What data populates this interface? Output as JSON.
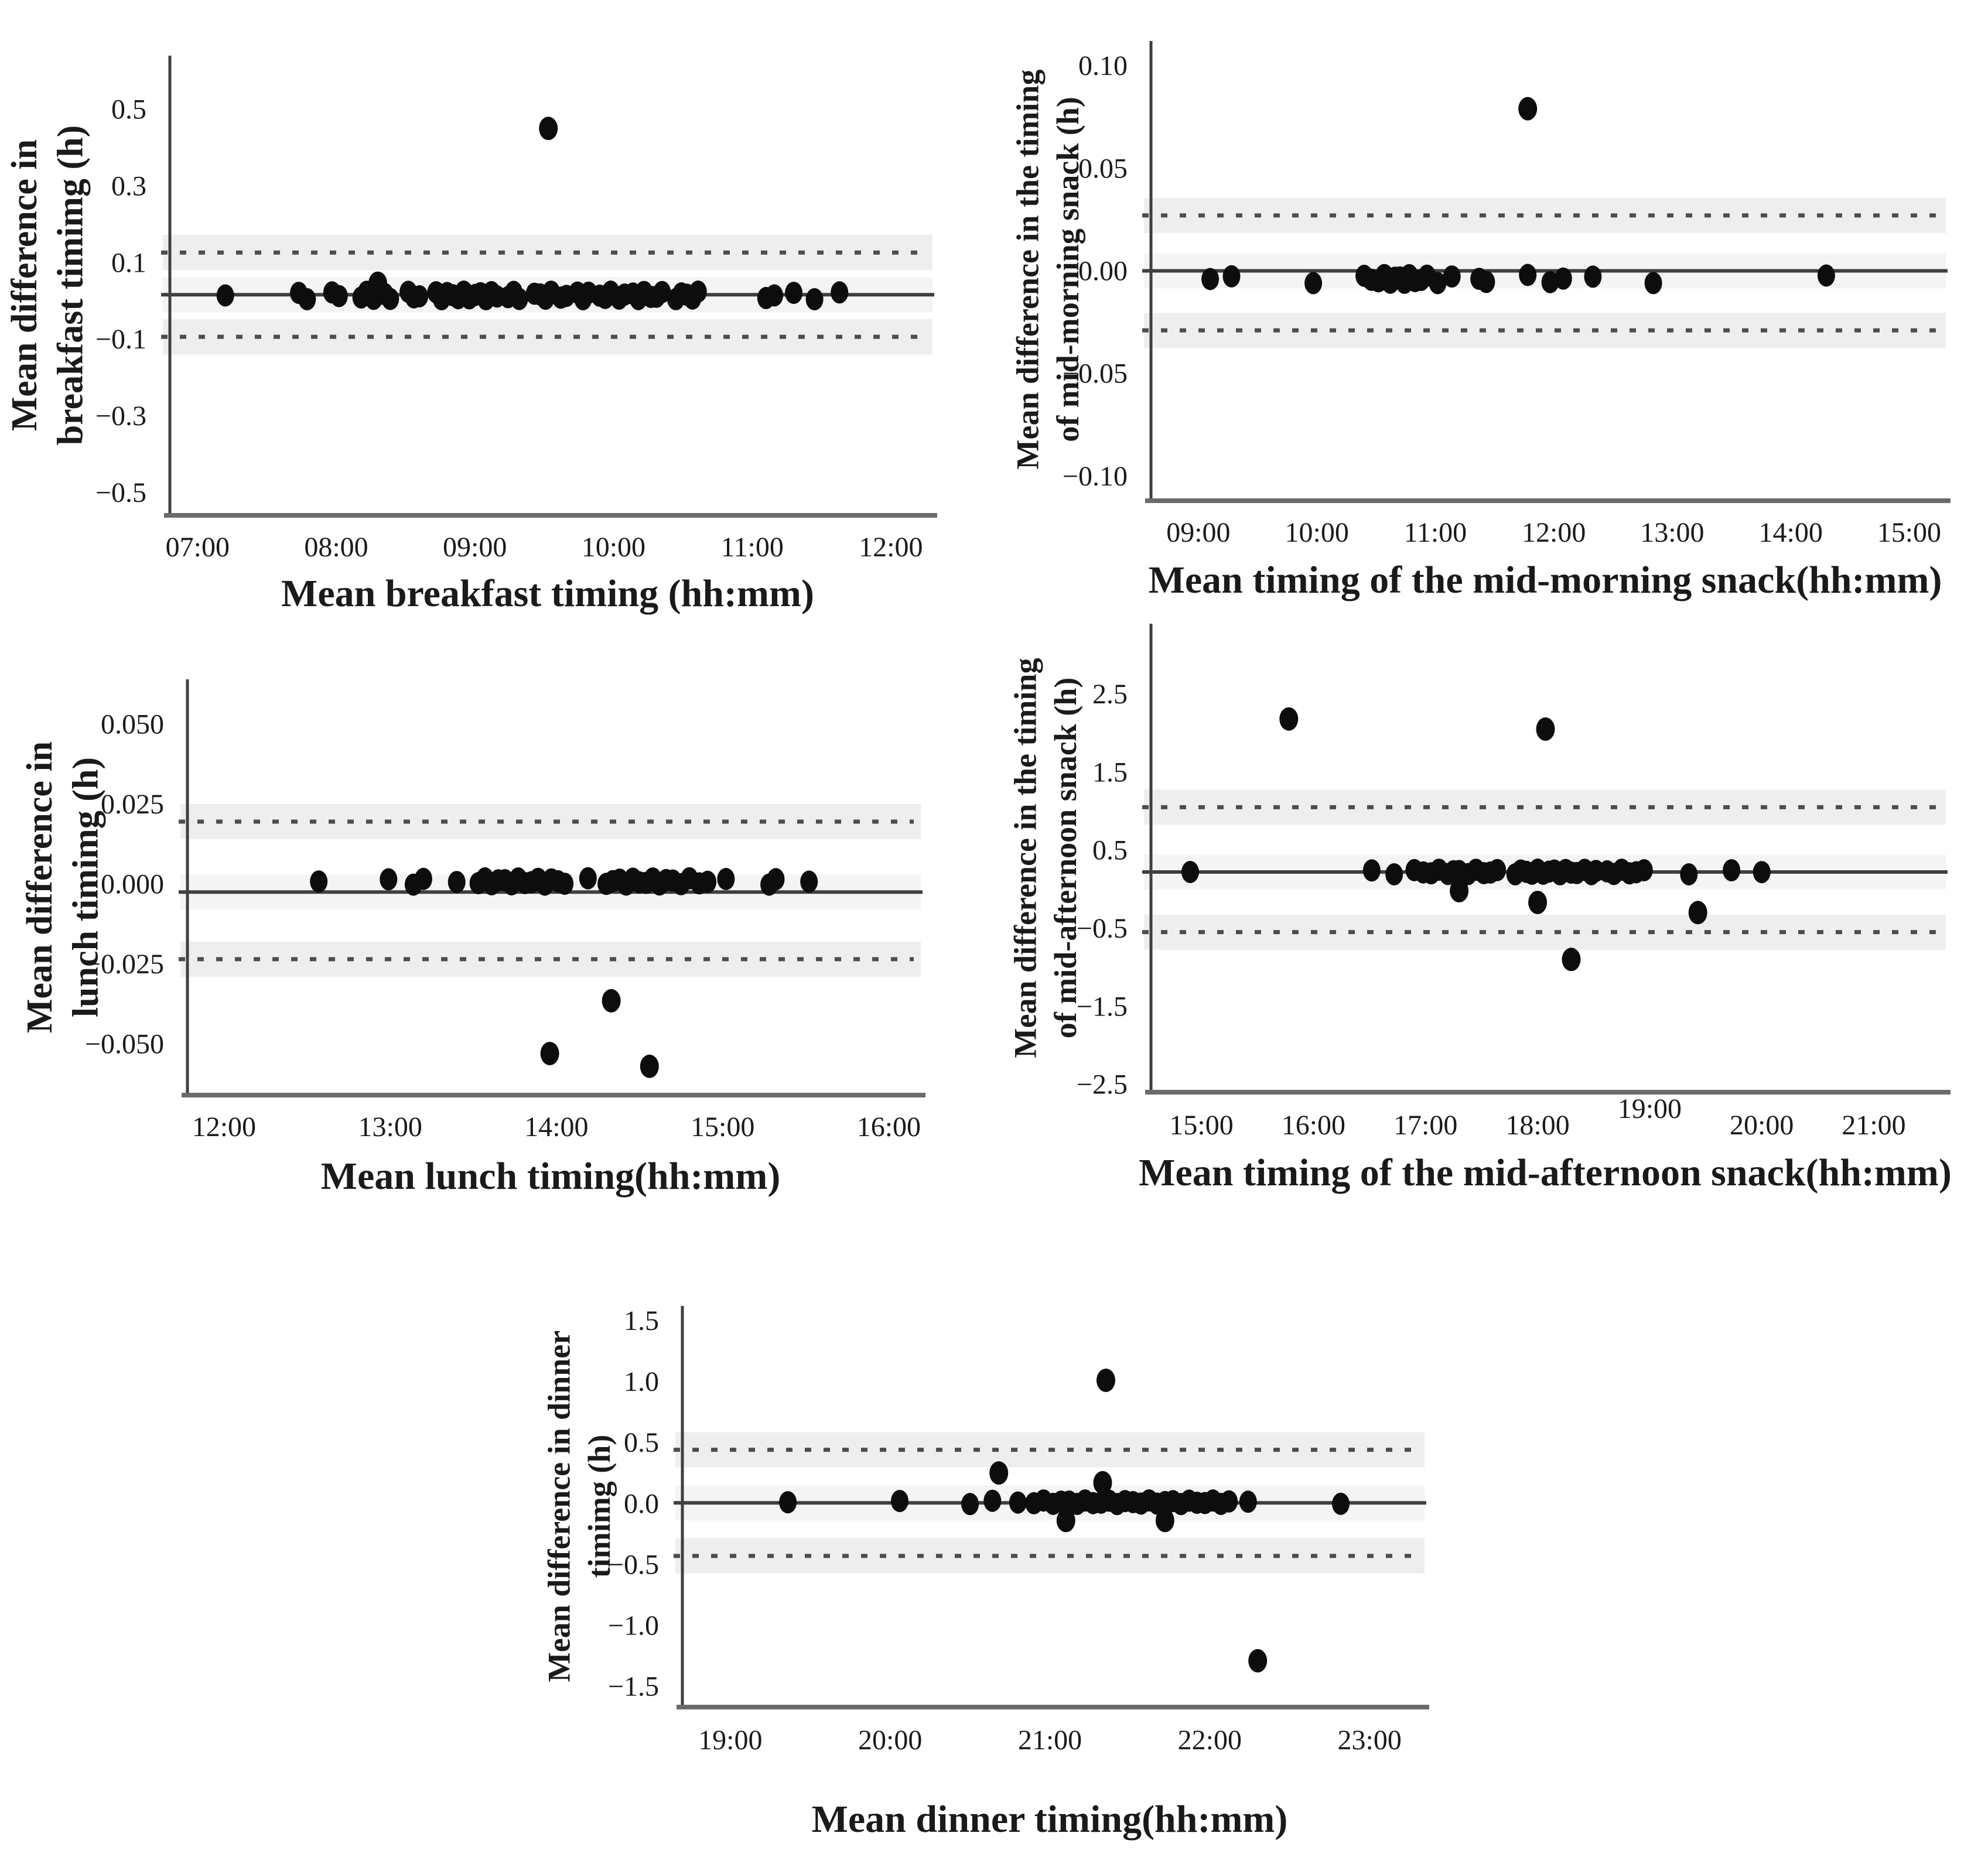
{
  "figure": {
    "background": "#ffffff",
    "colors": {
      "dot": "#0d0d0d",
      "mean_line": "#3f3f3f",
      "loa_line": "#4d4d4d",
      "axis_left": "#3f3f3f",
      "axis_bottom": "#6b6b6b",
      "band": "#000000",
      "text": "#1a1a1a"
    },
    "marker": {
      "rx": 15,
      "ry": 19
    },
    "mean_line_width": 6,
    "loa_line_width": 7,
    "loa_dash": "11 21",
    "tick_font_size": 48
  },
  "chart_data": [
    {
      "id": "breakfast",
      "type": "scatter",
      "ylabel_lines": [
        "Mean difference in",
        "breakfast timimg (h)"
      ],
      "xlabel": "Mean breakfast timing (hh:mm)",
      "xlim": [
        6.8,
        12.25
      ],
      "ylim": [
        -0.56,
        0.64
      ],
      "xticks": [
        {
          "v": 7,
          "label": "07:00"
        },
        {
          "v": 8,
          "label": "08:00"
        },
        {
          "v": 9,
          "label": "09:00"
        },
        {
          "v": 10,
          "label": "10:00"
        },
        {
          "v": 11,
          "label": "11:00"
        },
        {
          "v": 12,
          "label": "12:00"
        }
      ],
      "yticks": [
        {
          "v": 0.5,
          "label": "0.5"
        },
        {
          "v": 0.3,
          "label": "0.3"
        },
        {
          "v": 0.1,
          "label": "0.1"
        },
        {
          "v": -0.1,
          "label": "−0.1"
        },
        {
          "v": -0.3,
          "label": "−0.3"
        },
        {
          "v": -0.5,
          "label": "−0.5"
        }
      ],
      "mean_line": 0.016,
      "loa_upper": 0.126,
      "loa_lower": -0.094,
      "grid": false,
      "legend": null,
      "on_line_points": {
        "v": 0.014,
        "spread": 0.01,
        "t": [
          7.2,
          7.73,
          7.79,
          7.97,
          8.02,
          8.18,
          8.22,
          8.27,
          8.31,
          8.35,
          8.39,
          8.52,
          8.56,
          8.6,
          8.72,
          8.76,
          8.8,
          8.84,
          8.88,
          8.92,
          8.96,
          9.0,
          9.04,
          9.08,
          9.12,
          9.16,
          9.24,
          9.28,
          9.32,
          9.43,
          9.47,
          9.51,
          9.55,
          9.62,
          9.66,
          9.74,
          9.78,
          9.82,
          9.9,
          9.94,
          9.98,
          10.04,
          10.08,
          10.14,
          10.18,
          10.22,
          10.27,
          10.31,
          10.35,
          10.45,
          10.49,
          10.53,
          10.57,
          10.61,
          11.1,
          11.16,
          11.3,
          11.45,
          11.63
        ]
      },
      "scattered_points": [
        [
          9.53,
          0.45
        ],
        [
          8.3,
          0.046
        ]
      ]
    },
    {
      "id": "mid-morning-snack",
      "type": "scatter",
      "ylabel_lines": [
        "Mean difference in the timing",
        "of mid-morning snack (h)"
      ],
      "xlabel": "Mean timing of the mid-morning snack(hh:mm)",
      "xlim": [
        8.6,
        15.25
      ],
      "ylim": [
        -0.112,
        0.112
      ],
      "xticks": [
        {
          "v": 9,
          "label": "09:00"
        },
        {
          "v": 10,
          "label": "10:00"
        },
        {
          "v": 11,
          "label": "11:00"
        },
        {
          "v": 12,
          "label": "12:00"
        },
        {
          "v": 13,
          "label": "13:00"
        },
        {
          "v": 14,
          "label": "14:00"
        },
        {
          "v": 15,
          "label": "15:00"
        }
      ],
      "yticks": [
        {
          "v": 0.1,
          "label": "0.10"
        },
        {
          "v": 0.05,
          "label": "0.05"
        },
        {
          "v": 0.0,
          "label": "0.00"
        },
        {
          "v": -0.05,
          "label": "−0.05"
        },
        {
          "v": -0.1,
          "label": "−0.10"
        }
      ],
      "mean_line": 0.0,
      "loa_upper": 0.027,
      "loa_lower": -0.029,
      "grid": false,
      "legend": null,
      "on_line_points": {
        "v": -0.004,
        "spread": 0.002,
        "t": [
          9.1,
          9.28,
          9.97,
          10.4,
          10.46,
          10.52,
          10.57,
          10.62,
          10.66,
          10.7,
          10.74,
          10.78,
          10.83,
          10.88,
          10.93,
          11.02,
          11.14,
          11.37,
          11.43,
          11.78,
          11.97,
          12.08,
          12.33,
          12.84,
          14.3
        ]
      },
      "scattered_points": [
        [
          11.78,
          0.079
        ]
      ]
    },
    {
      "id": "lunch",
      "type": "scatter",
      "ylabel_lines": [
        "Mean difference in",
        "lunch timimg (h)"
      ],
      "xlabel": "Mean lunch timing(hh:mm)",
      "xlim": [
        11.78,
        16.15
      ],
      "ylim": [
        -0.066,
        0.064
      ],
      "xticks": [
        {
          "v": 12,
          "label": "12:00"
        },
        {
          "v": 13,
          "label": "13:00"
        },
        {
          "v": 14,
          "label": "14:00"
        },
        {
          "v": 15,
          "label": "15:00"
        },
        {
          "v": 16,
          "label": "16:00"
        }
      ],
      "yticks": [
        {
          "v": 0.05,
          "label": "0.050"
        },
        {
          "v": 0.025,
          "label": "0.025"
        },
        {
          "v": 0.0,
          "label": "0.000"
        },
        {
          "v": -0.025,
          "label": "−0.025"
        },
        {
          "v": -0.05,
          "label": "−0.050"
        }
      ],
      "mean_line": -0.0025,
      "loa_upper": 0.0195,
      "loa_lower": -0.0235,
      "grid": false,
      "legend": null,
      "on_line_points": {
        "v": 0.0008,
        "spread": 0.001,
        "t": [
          12.57,
          12.99,
          13.14,
          13.2,
          13.4,
          13.53,
          13.57,
          13.61,
          13.65,
          13.69,
          13.73,
          13.77,
          13.81,
          13.85,
          13.89,
          13.93,
          13.97,
          14.01,
          14.05,
          14.19,
          14.3,
          14.34,
          14.38,
          14.42,
          14.46,
          14.5,
          14.54,
          14.58,
          14.62,
          14.66,
          14.7,
          14.75,
          14.8,
          14.86,
          14.91,
          15.02,
          15.28,
          15.32,
          15.52
        ]
      },
      "scattered_points": [
        [
          13.96,
          -0.053
        ],
        [
          14.33,
          -0.0365
        ],
        [
          14.56,
          -0.057
        ]
      ]
    },
    {
      "id": "mid-afternoon-snack",
      "type": "scatter",
      "ylabel_lines": [
        "Mean difference in the timing",
        "of mid-afternoon snack (h)"
      ],
      "xlabel": "Mean timing of the mid-afternoon snack(hh:mm)",
      "xlim": [
        14.55,
        21.58
      ],
      "ylim": [
        -2.6,
        3.4
      ],
      "xticks": [
        {
          "v": 15,
          "label": "15:00"
        },
        {
          "v": 16,
          "label": "16:00"
        },
        {
          "v": 17,
          "label": "17:00"
        },
        {
          "v": 18,
          "label": "18:00"
        },
        {
          "v": 19,
          "label": "19:00",
          "dy": -28
        },
        {
          "v": 20,
          "label": "20:00"
        },
        {
          "v": 21,
          "label": "21:00"
        }
      ],
      "yticks": [
        {
          "v": 2.5,
          "label": "2.5"
        },
        {
          "v": 1.5,
          "label": "1.5"
        },
        {
          "v": 0.5,
          "label": "0.5"
        },
        {
          "v": -0.5,
          "label": "−0.5"
        },
        {
          "v": -1.5,
          "label": "−1.5"
        },
        {
          "v": -2.5,
          "label": "−2.5"
        }
      ],
      "mean_line": 0.22,
      "loa_upper": 1.05,
      "loa_lower": -0.55,
      "grid": false,
      "legend": null,
      "on_line_points": {
        "v": 0.22,
        "spread": 0.03,
        "t": [
          14.9,
          16.52,
          16.72,
          16.9,
          16.98,
          17.05,
          17.12,
          17.2,
          17.25,
          17.3,
          17.38,
          17.45,
          17.52,
          17.58,
          17.64,
          17.8,
          17.85,
          17.9,
          17.95,
          18.0,
          18.05,
          18.1,
          18.15,
          18.2,
          18.25,
          18.3,
          18.35,
          18.42,
          18.48,
          18.52,
          18.62,
          18.68,
          18.75,
          18.82,
          18.88,
          18.95,
          19.35,
          19.73,
          20.0
        ]
      },
      "scattered_points": [
        [
          15.78,
          2.18
        ],
        [
          18.07,
          2.05
        ],
        [
          17.3,
          -0.02
        ],
        [
          18.0,
          -0.17
        ],
        [
          19.43,
          -0.3
        ],
        [
          18.3,
          -0.9
        ]
      ]
    },
    {
      "id": "dinner",
      "type": "scatter",
      "ylabel_lines": [
        "Mean difference in dinner",
        "timimg (h)"
      ],
      "xlabel": "Mean dinner timing(hh:mm)",
      "xlim": [
        18.7,
        23.3
      ],
      "ylim": [
        -1.67,
        1.62
      ],
      "xticks": [
        {
          "v": 19,
          "label": "19:00"
        },
        {
          "v": 20,
          "label": "20:00"
        },
        {
          "v": 21,
          "label": "21:00"
        },
        {
          "v": 22,
          "label": "22:00"
        },
        {
          "v": 23,
          "label": "23:00"
        }
      ],
      "yticks": [
        {
          "v": 1.5,
          "label": "1.5"
        },
        {
          "v": 1.0,
          "label": "1.0"
        },
        {
          "v": 0.5,
          "label": "0.5"
        },
        {
          "v": 0.0,
          "label": "0.0"
        },
        {
          "v": -0.5,
          "label": "−0.5"
        },
        {
          "v": -1.0,
          "label": "−1.0"
        },
        {
          "v": -1.5,
          "label": "−1.5"
        }
      ],
      "mean_line": 0.005,
      "loa_upper": 0.44,
      "loa_lower": -0.43,
      "grid": false,
      "legend": null,
      "on_line_points": {
        "v": 0.01,
        "spread": 0.015,
        "t": [
          19.36,
          20.06,
          20.5,
          20.64,
          20.8,
          20.9,
          20.96,
          21.02,
          21.07,
          21.12,
          21.17,
          21.22,
          21.27,
          21.32,
          21.37,
          21.42,
          21.47,
          21.52,
          21.57,
          21.62,
          21.67,
          21.72,
          21.77,
          21.82,
          21.87,
          21.92,
          21.97,
          22.02,
          22.07,
          22.12,
          22.24,
          22.82
        ]
      },
      "scattered_points": [
        [
          21.35,
          1.01
        ],
        [
          20.68,
          0.25
        ],
        [
          21.33,
          0.17
        ],
        [
          21.1,
          -0.14
        ],
        [
          21.72,
          -0.14
        ],
        [
          22.3,
          -1.29
        ]
      ]
    }
  ]
}
